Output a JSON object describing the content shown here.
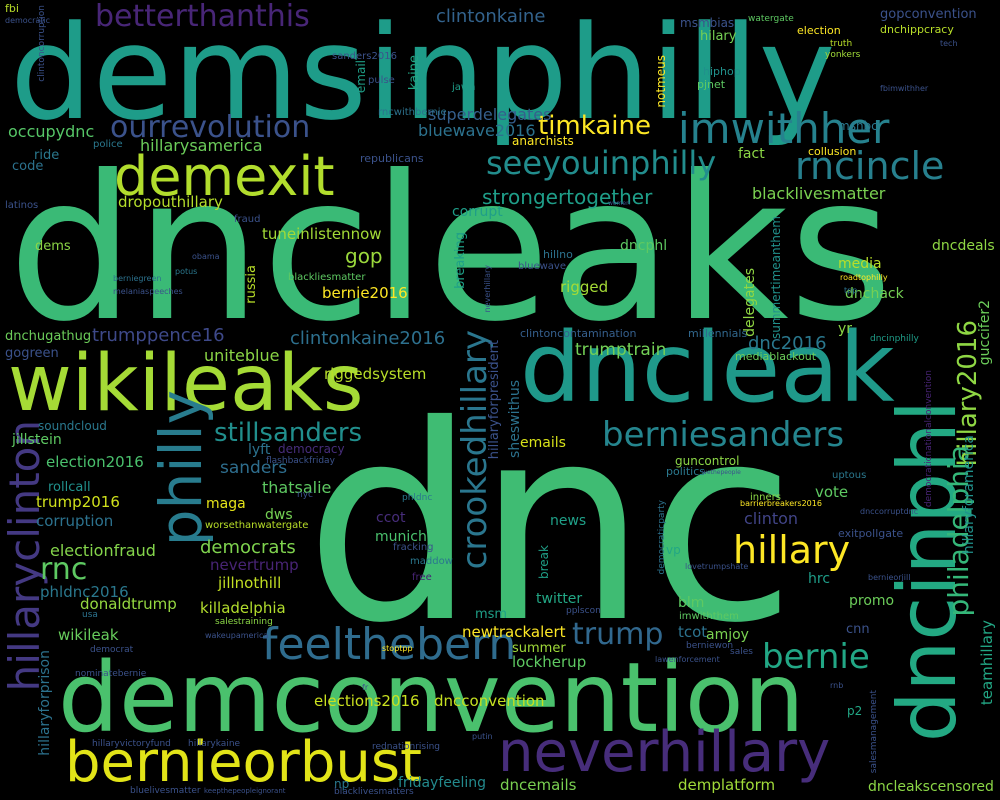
{
  "words": [
    {
      "text": "dnc",
      "color": "#3fbc73"
    },
    {
      "text": "dncleaks",
      "color": "#3aba76"
    },
    {
      "text": "demsinphilly",
      "color": "#1e9c89"
    },
    {
      "text": "demconvention",
      "color": "#4ac16d"
    },
    {
      "text": "wikileaks",
      "color": "#a5db36"
    },
    {
      "text": "dncleak",
      "color": "#1f998a"
    },
    {
      "text": "philly",
      "color": "#287c8e"
    },
    {
      "text": "dncinphl",
      "color": "#23a983"
    },
    {
      "text": "bernieorbust",
      "color": "#e2e418"
    },
    {
      "text": "feelthebern",
      "color": "#2f6c8e"
    },
    {
      "text": "neverhillary",
      "color": "#472d7b"
    },
    {
      "text": "hillaryclinton",
      "color": "#443983"
    },
    {
      "text": "demexit",
      "color": "#b2dd2d"
    },
    {
      "text": "imwithher",
      "color": "#26828e"
    },
    {
      "text": "ourrevolution",
      "color": "#3b528b"
    },
    {
      "text": "seeyouinphilly",
      "color": "#228d8d"
    },
    {
      "text": "rncincle",
      "color": "#27808e"
    },
    {
      "text": "betterthanthis",
      "color": "#482677"
    },
    {
      "text": "berniesanders",
      "color": "#25858e"
    },
    {
      "text": "stillsanders",
      "color": "#218f8d"
    },
    {
      "text": "crookedhillary",
      "color": "#2a768e"
    },
    {
      "text": "philadelphia",
      "color": "#35b779"
    },
    {
      "text": "hillary2016",
      "color": "#8fd744"
    },
    {
      "text": "hillary",
      "color": "#fde725"
    },
    {
      "text": "trump",
      "color": "#31688e"
    },
    {
      "text": "bernie",
      "color": "#22a785"
    },
    {
      "text": "timkaine",
      "color": "#fde725"
    },
    {
      "text": "rnc",
      "color": "#5ec962"
    },
    {
      "text": "clintonkaine",
      "color": "#33638d"
    },
    {
      "text": "hillarysamerica",
      "color": "#6ccd5a"
    },
    {
      "text": "occupydnc",
      "color": "#56c667"
    },
    {
      "text": "superdelegates",
      "color": "#355f8d"
    },
    {
      "text": "bluewave2016",
      "color": "#2c728e"
    },
    {
      "text": "strongertogether",
      "color": "#1f9e89"
    },
    {
      "text": "blacklivesmatter",
      "color": "#7ad151"
    },
    {
      "text": "dropouthillary",
      "color": "#b5de2b"
    },
    {
      "text": "tuneinlistennow",
      "color": "#a2da37"
    },
    {
      "text": "gop",
      "color": "#9bd93c"
    },
    {
      "text": "bernie2016",
      "color": "#fde725"
    },
    {
      "text": "clintonkaine2016",
      "color": "#2d708e"
    },
    {
      "text": "trumppence16",
      "color": "#3e4989"
    },
    {
      "text": "dnc2016",
      "color": "#2a788e"
    },
    {
      "text": "trumptrain",
      "color": "#73d056"
    },
    {
      "text": "uniteblue",
      "color": "#8bd646"
    },
    {
      "text": "riggedsystem",
      "color": "#b8de29"
    },
    {
      "text": "sanders",
      "color": "#2e6e8e"
    },
    {
      "text": "thatsalie",
      "color": "#5ec962"
    },
    {
      "text": "election2016",
      "color": "#4ac16d"
    },
    {
      "text": "trump2016",
      "color": "#d0e11c"
    },
    {
      "text": "corruption",
      "color": "#2c728e"
    },
    {
      "text": "electionfraud",
      "color": "#84d44b"
    },
    {
      "text": "democrats",
      "color": "#7fd34e"
    },
    {
      "text": "nevertrump",
      "color": "#482475"
    },
    {
      "text": "jillnothill",
      "color": "#c2df23"
    },
    {
      "text": "killadelphia",
      "color": "#b2dd2d"
    },
    {
      "text": "phldnc2016",
      "color": "#2a788e"
    },
    {
      "text": "donaldtrump",
      "color": "#95d840"
    },
    {
      "text": "wikileak",
      "color": "#67cc5c"
    },
    {
      "text": "newtrackalert",
      "color": "#fde725"
    },
    {
      "text": "lockherup",
      "color": "#5ec962"
    },
    {
      "text": "elections2016",
      "color": "#cae11f"
    },
    {
      "text": "dncconvention",
      "color": "#c5e021"
    },
    {
      "text": "dncemails",
      "color": "#7ad151"
    },
    {
      "text": "demplatform",
      "color": "#a0da39"
    },
    {
      "text": "dncleakscensored",
      "color": "#8bd646"
    },
    {
      "text": "fridayfeeling",
      "color": "#238a8d"
    },
    {
      "text": "hillaryforprison",
      "color": "#2c728e"
    },
    {
      "text": "teamhillary",
      "color": "#22a785"
    },
    {
      "text": "hillaryforamerica",
      "color": "#21918c"
    },
    {
      "text": "guccifer2",
      "color": "#6ccd5a"
    },
    {
      "text": "jillstein",
      "color": "#5ec962"
    },
    {
      "text": "emails",
      "color": "#d8e219"
    },
    {
      "text": "lyft",
      "color": "#2c728e"
    },
    {
      "text": "maga",
      "color": "#e5e419"
    },
    {
      "text": "dws",
      "color": "#75d054"
    },
    {
      "text": "ccot",
      "color": "#472d7b"
    },
    {
      "text": "munich",
      "color": "#4ac16d"
    },
    {
      "text": "news",
      "color": "#1fa088"
    },
    {
      "text": "clinton",
      "color": "#414487"
    },
    {
      "text": "vote",
      "color": "#5ec962"
    },
    {
      "text": "hrc",
      "color": "#1f9e89"
    },
    {
      "text": "tcot",
      "color": "#2c728e"
    },
    {
      "text": "amjoy",
      "color": "#7ad151"
    },
    {
      "text": "blm",
      "color": "#5ec962"
    },
    {
      "text": "promo",
      "color": "#6ccd5a"
    },
    {
      "text": "cnn",
      "color": "#3b528b"
    },
    {
      "text": "msm",
      "color": "#1fa088"
    },
    {
      "text": "summer",
      "color": "#a0da39"
    },
    {
      "text": "twitter",
      "color": "#22a785"
    },
    {
      "text": "rigged",
      "color": "#a5db36"
    },
    {
      "text": "dncphl",
      "color": "#5ec962"
    },
    {
      "text": "dnchack",
      "color": "#75d054"
    },
    {
      "text": "media",
      "color": "#b8de29"
    },
    {
      "text": "dncdeals",
      "color": "#8fd744"
    },
    {
      "text": "yr",
      "color": "#8bd646"
    },
    {
      "text": "corrupt",
      "color": "#1f9e89"
    },
    {
      "text": "fact",
      "color": "#8bd646"
    },
    {
      "text": "collusion",
      "color": "#fde725"
    },
    {
      "text": "delegates",
      "color": "#90d743"
    },
    {
      "text": "summertimeanthem",
      "color": "#21918c"
    },
    {
      "text": "sheswithus",
      "color": "#2c728e"
    },
    {
      "text": "hillaryforpresident",
      "color": "#3b528b"
    },
    {
      "text": "clintoncontamination",
      "color": "#355f8d"
    },
    {
      "text": "millennials",
      "color": "#31688e"
    },
    {
      "text": "mediablackout",
      "color": "#6ccd5a"
    },
    {
      "text": "dncinphilly",
      "color": "#1f9e89"
    },
    {
      "text": "msnbc",
      "color": "#2a788e"
    },
    {
      "text": "hillno",
      "color": "#2c728e"
    },
    {
      "text": "bluewave",
      "color": "#3b528b"
    },
    {
      "text": "breaking",
      "color": "#1fa088"
    },
    {
      "text": "russia",
      "color": "#b8de29"
    },
    {
      "text": "blackliesmatter",
      "color": "#5ec962"
    },
    {
      "text": "gogreen",
      "color": "#3b528b"
    },
    {
      "text": "dnchugathug",
      "color": "#6ccd5a"
    },
    {
      "text": "code",
      "color": "#2c728e"
    },
    {
      "text": "ride",
      "color": "#2a788e"
    },
    {
      "text": "dems",
      "color": "#8bd646"
    },
    {
      "text": "latinos",
      "color": "#3b528b"
    },
    {
      "text": "police",
      "color": "#2a788e"
    },
    {
      "text": "republicans",
      "color": "#3b528b"
    },
    {
      "text": "anarchists",
      "color": "#fde725"
    },
    {
      "text": "rncwithbernie",
      "color": "#2c728e"
    },
    {
      "text": "email",
      "color": "#1fa088"
    },
    {
      "text": "pulse",
      "color": "#3b528b"
    },
    {
      "text": "kaine",
      "color": "#22a785"
    },
    {
      "text": "jawn",
      "color": "#1f9e89"
    },
    {
      "text": "notmeus",
      "color": "#fde725"
    },
    {
      "text": "msmbias",
      "color": "#3b528b"
    },
    {
      "text": "hilary",
      "color": "#75d054"
    },
    {
      "text": "watergate",
      "color": "#5ec962"
    },
    {
      "text": "election",
      "color": "#fde725"
    },
    {
      "text": "gopconvention",
      "color": "#3b528b"
    },
    {
      "text": "dnchippcracy",
      "color": "#b8de29"
    },
    {
      "text": "truth",
      "color": "#b8de29"
    },
    {
      "text": "yonkers",
      "color": "#a0da39"
    },
    {
      "text": "tech",
      "color": "#3b528b"
    },
    {
      "text": "fbimwithher",
      "color": "#3b528b"
    },
    {
      "text": "hiphop",
      "color": "#21918c"
    },
    {
      "text": "pjnet",
      "color": "#5ec962"
    },
    {
      "text": "sanders2016",
      "color": "#3b528b"
    },
    {
      "text": "fbi",
      "color": "#b8de29"
    },
    {
      "text": "democratic",
      "color": "#3b528b"
    },
    {
      "text": "clintoncorruption",
      "color": "#3b528b"
    },
    {
      "text": "soundcloud",
      "color": "#2a788e"
    },
    {
      "text": "rollcall",
      "color": "#21918c"
    },
    {
      "text": "democracy",
      "color": "#472d7b"
    },
    {
      "text": "flashbackfriday",
      "color": "#3b528b"
    },
    {
      "text": "nyc",
      "color": "#3b528b"
    },
    {
      "text": "phldnc",
      "color": "#2a788e"
    },
    {
      "text": "worsethanwatergate",
      "color": "#b8de29"
    },
    {
      "text": "fracking",
      "color": "#3b528b"
    },
    {
      "text": "maddow",
      "color": "#2a788e"
    },
    {
      "text": "free",
      "color": "#482475"
    },
    {
      "text": "break",
      "color": "#1fa088"
    },
    {
      "text": "guncontrol",
      "color": "#8bd646"
    },
    {
      "text": "politics",
      "color": "#2a788e"
    },
    {
      "text": "uptous",
      "color": "#2a788e"
    },
    {
      "text": "democraticparty",
      "color": "#2c728e"
    },
    {
      "text": "inners",
      "color": "#8bd646"
    },
    {
      "text": "barrierbreakers2016",
      "color": "#fde725"
    },
    {
      "text": "dnccorruptdnc",
      "color": "#3b528b"
    },
    {
      "text": "exitpollgate",
      "color": "#3b528b"
    },
    {
      "text": "democraticnationalconvention",
      "color": "#482475"
    },
    {
      "text": "vp",
      "color": "#22a785"
    },
    {
      "text": "lovetrumpshate",
      "color": "#3b528b"
    },
    {
      "text": "bernieorjill",
      "color": "#3b528b"
    },
    {
      "text": "imwiththem",
      "color": "#5ec962"
    },
    {
      "text": "pplscon",
      "color": "#3b528b"
    },
    {
      "text": "salestraining",
      "color": "#8bd646"
    },
    {
      "text": "wakeupamerica",
      "color": "#3b528b"
    },
    {
      "text": "usa",
      "color": "#2c728e"
    },
    {
      "text": "democrat",
      "color": "#3b528b"
    },
    {
      "text": "stoptpp",
      "color": "#fde725"
    },
    {
      "text": "berniewon",
      "color": "#3b528b"
    },
    {
      "text": "sales",
      "color": "#3b528b"
    },
    {
      "text": "lawenforcement",
      "color": "#3b528b"
    },
    {
      "text": "nominatebernie",
      "color": "#3b528b"
    },
    {
      "text": "fr",
      "color": "#3b528b"
    },
    {
      "text": "rnb",
      "color": "#3b528b"
    },
    {
      "text": "p2",
      "color": "#22a785"
    },
    {
      "text": "salesmanagement",
      "color": "#3b528b"
    },
    {
      "text": "hillaryvictoryfund",
      "color": "#3b528b"
    },
    {
      "text": "hillarykaine",
      "color": "#3b528b"
    },
    {
      "text": "rednationrising",
      "color": "#3b528b"
    },
    {
      "text": "putin",
      "color": "#3b528b"
    },
    {
      "text": "np",
      "color": "#2a788e"
    },
    {
      "text": "bluelivesmatter",
      "color": "#3b528b"
    },
    {
      "text": "keepthepeopleignorant",
      "color": "#3b528b"
    },
    {
      "text": "blacklivesmatters",
      "color": "#3b528b"
    },
    {
      "text": "neverhillary",
      "color": "#3b528b"
    },
    {
      "text": "obama",
      "color": "#3b528b"
    },
    {
      "text": "potus",
      "color": "#2a788e"
    },
    {
      "text": "berniegreen",
      "color": "#2c728e"
    },
    {
      "text": "melaniaspeeches",
      "color": "#3b528b"
    },
    {
      "text": "fraud",
      "color": "#3b528b"
    },
    {
      "text": "women",
      "color": "#3b528b"
    },
    {
      "text": "wethepeople",
      "color": "#3b528b"
    },
    {
      "text": "roadtophilly",
      "color": "#fde725"
    },
    {
      "text": "tpp",
      "color": "#2c728e"
    }
  ]
}
